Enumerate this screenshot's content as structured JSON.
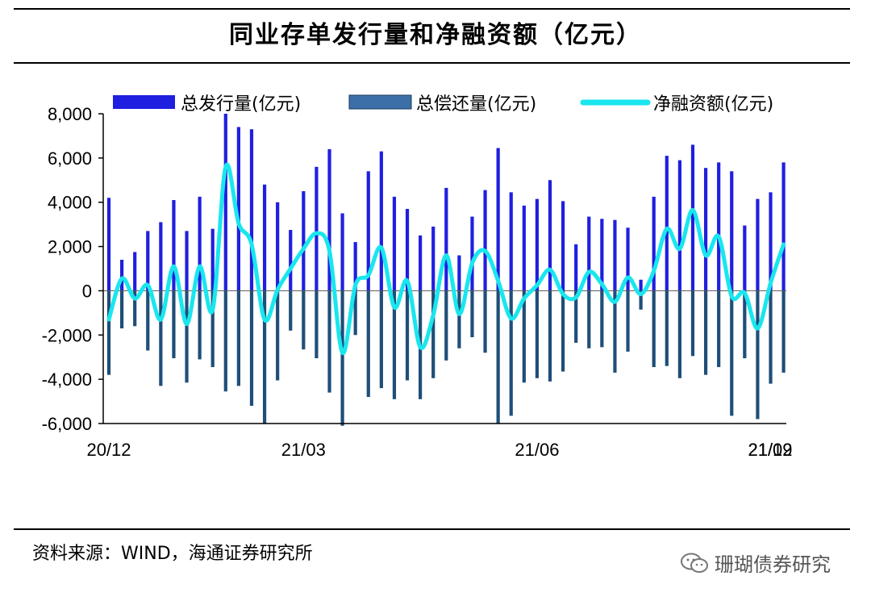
{
  "title": "同业存单发行量和净融资额（亿元）",
  "source": "资料来源：WIND，海通证券研究所",
  "watermark": "珊瑚债券研究",
  "colors": {
    "issuance": "#1F1FE0",
    "repayment": "#1F4E79",
    "repayment_legend": "#3C6FA8",
    "net": "#19E6EE",
    "axis": "#000000"
  },
  "chart_data": {
    "type": "bar",
    "xlabel": "",
    "ylabel": "",
    "ylim": [
      -6000,
      8000
    ],
    "yticks": [
      -6000,
      -4000,
      -2000,
      0,
      2000,
      4000,
      6000,
      8000
    ],
    "ytick_labels": [
      "-6,000",
      "-4,000",
      "-2,000",
      "0",
      "2,000",
      "4,000",
      "6,000",
      "8,000"
    ],
    "xtick_labels": [
      {
        "label": "20/12",
        "index": 0
      },
      {
        "label": "21/03",
        "index": 15
      },
      {
        "label": "21/06",
        "index": 33
      },
      {
        "label": "21/09",
        "index": 52
      },
      {
        "label": "21/12",
        "index": 70
      }
    ],
    "legend": [
      "总发行量(亿元)",
      "总偿还量(亿元)",
      "净融资额(亿元)"
    ],
    "series": [
      {
        "name": "总发行量(亿元)",
        "kind": "bar",
        "values": [
          4200,
          1400,
          1750,
          2700,
          3100,
          4100,
          2700,
          4250,
          2800,
          8000,
          7400,
          7300,
          4800,
          4000,
          2750,
          4500,
          5600,
          6400,
          3500,
          2200,
          5400,
          6300,
          4250,
          3700,
          2500,
          2900,
          4650,
          1600,
          3350,
          4550,
          6450,
          4450,
          3850,
          4150,
          5000,
          4050,
          2100,
          3350,
          3250,
          3200,
          2850,
          500,
          4250,
          6100,
          5900,
          6600,
          5550,
          5800,
          5400,
          2950,
          4150,
          4450,
          5800
        ]
      },
      {
        "name": "总偿还量(亿元)",
        "kind": "bar",
        "values": [
          -3800,
          -1700,
          -1600,
          -2700,
          -4300,
          -3050,
          -4150,
          -3100,
          -3450,
          -4550,
          -4300,
          -5200,
          -6000,
          -4050,
          -1800,
          -2650,
          -3050,
          -4600,
          -6100,
          -2000,
          -4800,
          -4400,
          -4900,
          -4050,
          -4900,
          -3950,
          -3150,
          -2600,
          -2100,
          -2800,
          -6000,
          -5650,
          -4150,
          -3950,
          -4100,
          -3650,
          -2350,
          -2600,
          -2550,
          -3700,
          -2750,
          -850,
          -3450,
          -3400,
          -3950,
          -2950,
          -3800,
          -3450,
          -5650,
          -3050,
          -5800,
          -4200,
          -3700
        ]
      },
      {
        "name": "净融资额(亿元)",
        "kind": "line",
        "values": [
          -1300,
          550,
          -350,
          250,
          -1300,
          1100,
          -1500,
          1100,
          -850,
          5600,
          3050,
          2100,
          -1300,
          50,
          1000,
          1900,
          2600,
          1800,
          -2800,
          250,
          700,
          1950,
          -750,
          450,
          -2550,
          -1100,
          1600,
          -1050,
          1250,
          1800,
          450,
          -1250,
          -350,
          250,
          950,
          -150,
          -300,
          850,
          300,
          -500,
          600,
          -150,
          900,
          2800,
          1900,
          3650,
          1600,
          2450,
          -250,
          -100,
          -1700,
          350,
          2100
        ]
      }
    ]
  }
}
